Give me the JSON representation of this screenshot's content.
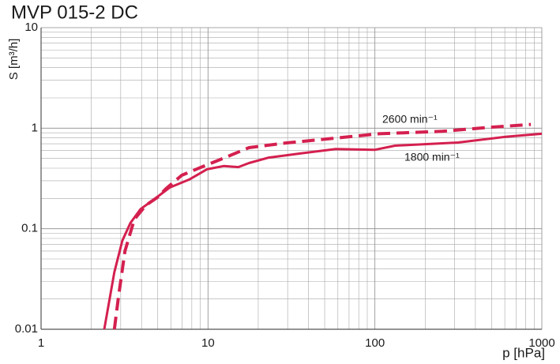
{
  "chart_data": {
    "type": "line",
    "title": "MVP 015-2 DC",
    "x_label": "p [hPa]",
    "y_label": "S  [m³/h]",
    "log_x": true,
    "log_y": true,
    "grid": true,
    "minor_grid": true,
    "xlim": [
      1,
      1000
    ],
    "ylim": [
      0.01,
      10
    ],
    "xticks": [
      1,
      10,
      100,
      1000
    ],
    "yticks": [
      0.01,
      0.1,
      1,
      10
    ],
    "series": [
      {
        "name": "2600 min⁻¹",
        "color": "#d4204f",
        "line_style": "dashed",
        "x": [
          2.75,
          2.91,
          3.18,
          3.62,
          4.26,
          5.0,
          5.6,
          6.96,
          9.14,
          13.4,
          17.6,
          28.7,
          55.2,
          106,
          254,
          488,
          859
        ],
        "values": [
          0.01,
          0.021,
          0.06,
          0.124,
          0.172,
          0.206,
          0.25,
          0.34,
          0.41,
          0.53,
          0.64,
          0.71,
          0.79,
          0.88,
          0.93,
          1.02,
          1.09
        ]
      },
      {
        "name": "1800 min⁻¹",
        "color": "#d4204f",
        "line_style": "solid",
        "x": [
          2.39,
          2.75,
          3.07,
          3.43,
          3.95,
          4.75,
          5.9,
          7.76,
          9.86,
          12.4,
          15.2,
          17.6,
          23.1,
          35.7,
          58.2,
          100,
          132,
          315,
          606,
          1000
        ],
        "values": [
          0.01,
          0.037,
          0.076,
          0.114,
          0.157,
          0.196,
          0.257,
          0.31,
          0.39,
          0.42,
          0.41,
          0.45,
          0.51,
          0.56,
          0.62,
          0.61,
          0.67,
          0.72,
          0.82,
          0.88
        ]
      }
    ]
  }
}
